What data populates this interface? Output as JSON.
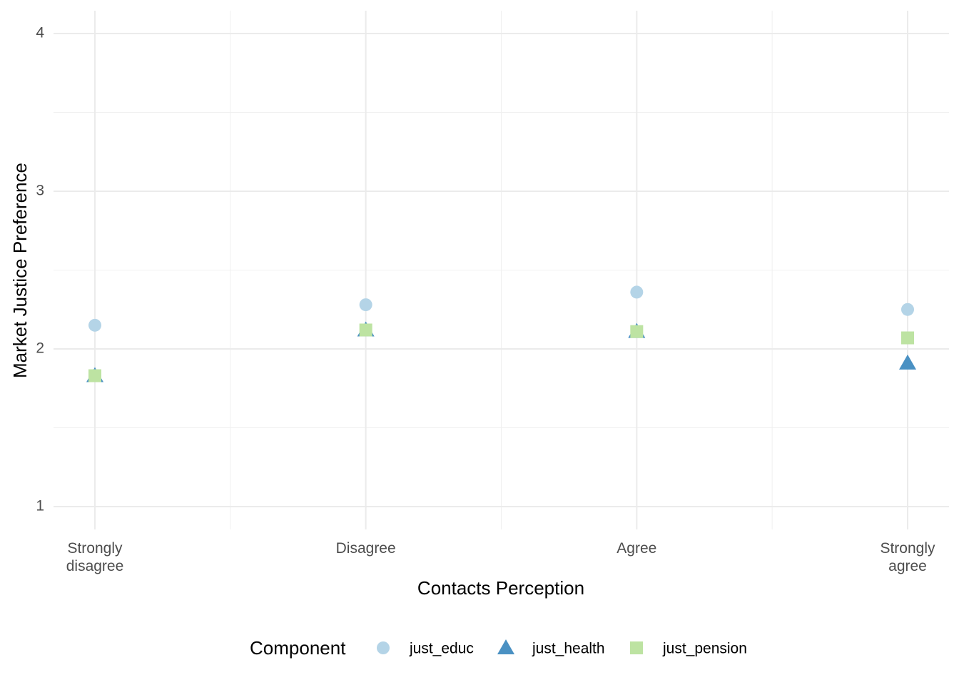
{
  "chart_data": {
    "type": "scatter",
    "categories": [
      "Strongly\ndisagree",
      "Disagree",
      "Agree",
      "Strongly\nagree"
    ],
    "x_label": "Contacts Perception",
    "y_label": "Market Justice Preference",
    "ylim": [
      0.855,
      4.145
    ],
    "yticks": [
      1,
      2,
      3,
      4
    ],
    "grid": true,
    "legend_title": "Component",
    "legend_position": "bottom",
    "series": [
      {
        "name": "just_educ",
        "color": "#b4d4e7",
        "shape": "circle",
        "values": [
          2.15,
          2.28,
          2.36,
          2.25
        ]
      },
      {
        "name": "just_health",
        "color": "#4a91c3",
        "shape": "triangle",
        "values": [
          1.83,
          2.12,
          2.11,
          1.91
        ]
      },
      {
        "name": "just_pension",
        "color": "#bde3a2",
        "shape": "square",
        "values": [
          1.83,
          2.12,
          2.11,
          2.07
        ]
      }
    ]
  }
}
